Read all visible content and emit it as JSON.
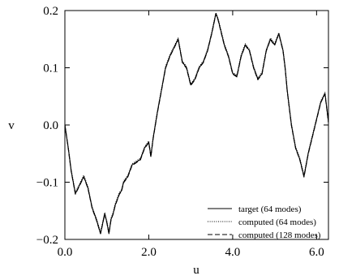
{
  "chart_data": {
    "type": "line",
    "title": "",
    "xlabel": "u",
    "ylabel": "v",
    "xlim": [
      0.0,
      6.283
    ],
    "ylim": [
      -0.2,
      0.2
    ],
    "xticks": [
      0.0,
      2.0,
      4.0,
      6.0
    ],
    "xtick_labels": [
      "0.0",
      "2.0",
      "4.0",
      "6.0"
    ],
    "yticks": [
      -0.2,
      -0.1,
      0.0,
      0.1,
      0.2
    ],
    "ytick_labels": [
      "−0.2",
      "−0.1",
      "0.0",
      "0.1",
      "0.2"
    ],
    "grid": false,
    "legend_position": "lower-right",
    "series": [
      {
        "name": "target (64 modes)",
        "style": "solid",
        "color": "#000000",
        "x": [
          0.0,
          0.08,
          0.15,
          0.25,
          0.35,
          0.45,
          0.55,
          0.65,
          0.75,
          0.85,
          0.95,
          1.0,
          1.05,
          1.1,
          1.15,
          1.2,
          1.25,
          1.3,
          1.35,
          1.4,
          1.5,
          1.6,
          1.7,
          1.8,
          1.9,
          2.0,
          2.05,
          2.1,
          2.2,
          2.3,
          2.4,
          2.5,
          2.6,
          2.7,
          2.75,
          2.8,
          2.9,
          3.0,
          3.1,
          3.2,
          3.3,
          3.4,
          3.5,
          3.6,
          3.65,
          3.7,
          3.8,
          3.9,
          4.0,
          4.1,
          4.2,
          4.3,
          4.4,
          4.5,
          4.6,
          4.7,
          4.8,
          4.9,
          5.0,
          5.05,
          5.1,
          5.2,
          5.25,
          5.3,
          5.4,
          5.5,
          5.6,
          5.7,
          5.75,
          5.8,
          5.9,
          6.0,
          6.1,
          6.2,
          6.283
        ],
        "y": [
          0.0,
          -0.04,
          -0.08,
          -0.12,
          -0.105,
          -0.09,
          -0.11,
          -0.145,
          -0.165,
          -0.19,
          -0.155,
          -0.17,
          -0.19,
          -0.165,
          -0.155,
          -0.14,
          -0.13,
          -0.12,
          -0.115,
          -0.1,
          -0.09,
          -0.07,
          -0.065,
          -0.06,
          -0.04,
          -0.03,
          -0.055,
          -0.025,
          0.02,
          0.06,
          0.1,
          0.12,
          0.135,
          0.15,
          0.13,
          0.11,
          0.1,
          0.07,
          0.08,
          0.1,
          0.11,
          0.13,
          0.16,
          0.195,
          0.185,
          0.17,
          0.14,
          0.12,
          0.09,
          0.085,
          0.12,
          0.14,
          0.13,
          0.1,
          0.08,
          0.09,
          0.13,
          0.15,
          0.14,
          0.15,
          0.16,
          0.13,
          0.1,
          0.06,
          0.0,
          -0.04,
          -0.06,
          -0.09,
          -0.07,
          -0.05,
          -0.02,
          0.01,
          0.04,
          0.055,
          0.005
        ]
      },
      {
        "name": "computed (64 modes)",
        "style": "dotted",
        "color": "#000000",
        "x": [
          0.0,
          0.08,
          0.15,
          0.25,
          0.35,
          0.45,
          0.55,
          0.65,
          0.75,
          0.85,
          0.95,
          1.0,
          1.05,
          1.1,
          1.15,
          1.2,
          1.25,
          1.3,
          1.35,
          1.4,
          1.5,
          1.6,
          1.7,
          1.8,
          1.9,
          2.0,
          2.05,
          2.1,
          2.2,
          2.3,
          2.4,
          2.5,
          2.6,
          2.7,
          2.75,
          2.8,
          2.9,
          3.0,
          3.1,
          3.2,
          3.3,
          3.4,
          3.5,
          3.6,
          3.65,
          3.7,
          3.8,
          3.9,
          4.0,
          4.1,
          4.2,
          4.3,
          4.4,
          4.5,
          4.6,
          4.7,
          4.8,
          4.9,
          5.0,
          5.05,
          5.1,
          5.2,
          5.25,
          5.3,
          5.4,
          5.5,
          5.6,
          5.7,
          5.75,
          5.8,
          5.9,
          6.0,
          6.1,
          6.2,
          6.283
        ],
        "y": [
          0.0,
          -0.038,
          -0.078,
          -0.118,
          -0.103,
          -0.088,
          -0.108,
          -0.143,
          -0.163,
          -0.187,
          -0.153,
          -0.168,
          -0.187,
          -0.163,
          -0.153,
          -0.138,
          -0.128,
          -0.118,
          -0.113,
          -0.098,
          -0.088,
          -0.068,
          -0.063,
          -0.058,
          -0.038,
          -0.028,
          -0.053,
          -0.023,
          0.022,
          0.062,
          0.102,
          0.122,
          0.137,
          0.152,
          0.132,
          0.112,
          0.102,
          0.072,
          0.082,
          0.102,
          0.112,
          0.132,
          0.162,
          0.196,
          0.187,
          0.172,
          0.142,
          0.122,
          0.092,
          0.087,
          0.122,
          0.142,
          0.132,
          0.102,
          0.082,
          0.092,
          0.132,
          0.152,
          0.142,
          0.152,
          0.161,
          0.132,
          0.102,
          0.062,
          0.002,
          -0.038,
          -0.058,
          -0.088,
          -0.068,
          -0.048,
          -0.018,
          0.012,
          0.042,
          0.057,
          0.006
        ]
      },
      {
        "name": "computed (128 modes)",
        "style": "dashed",
        "color": "#000000",
        "x": [
          0.0,
          0.08,
          0.15,
          0.25,
          0.35,
          0.45,
          0.55,
          0.65,
          0.75,
          0.85,
          0.95,
          1.0,
          1.05,
          1.1,
          1.15,
          1.2,
          1.25,
          1.3,
          1.35,
          1.4,
          1.5,
          1.6,
          1.7,
          1.8,
          1.9,
          2.0,
          2.05,
          2.1,
          2.2,
          2.3,
          2.4,
          2.5,
          2.6,
          2.7,
          2.75,
          2.8,
          2.9,
          3.0,
          3.1,
          3.2,
          3.3,
          3.4,
          3.5,
          3.6,
          3.65,
          3.7,
          3.8,
          3.9,
          4.0,
          4.1,
          4.2,
          4.3,
          4.4,
          4.5,
          4.6,
          4.7,
          4.8,
          4.9,
          5.0,
          5.05,
          5.1,
          5.2,
          5.25,
          5.3,
          5.4,
          5.5,
          5.6,
          5.7,
          5.75,
          5.8,
          5.9,
          6.0,
          6.1,
          6.2,
          6.283
        ],
        "y": [
          0.0,
          -0.041,
          -0.081,
          -0.121,
          -0.106,
          -0.091,
          -0.111,
          -0.146,
          -0.166,
          -0.19,
          -0.156,
          -0.171,
          -0.19,
          -0.166,
          -0.156,
          -0.141,
          -0.131,
          -0.121,
          -0.116,
          -0.101,
          -0.091,
          -0.071,
          -0.066,
          -0.061,
          -0.041,
          -0.031,
          -0.056,
          -0.026,
          0.019,
          0.059,
          0.099,
          0.119,
          0.134,
          0.149,
          0.129,
          0.109,
          0.099,
          0.069,
          0.079,
          0.099,
          0.109,
          0.129,
          0.159,
          0.194,
          0.184,
          0.169,
          0.139,
          0.119,
          0.089,
          0.084,
          0.119,
          0.139,
          0.129,
          0.099,
          0.079,
          0.089,
          0.129,
          0.149,
          0.139,
          0.149,
          0.159,
          0.129,
          0.099,
          0.059,
          -0.001,
          -0.041,
          -0.061,
          -0.091,
          -0.071,
          -0.051,
          -0.021,
          0.009,
          0.039,
          0.054,
          0.004
        ]
      }
    ]
  }
}
